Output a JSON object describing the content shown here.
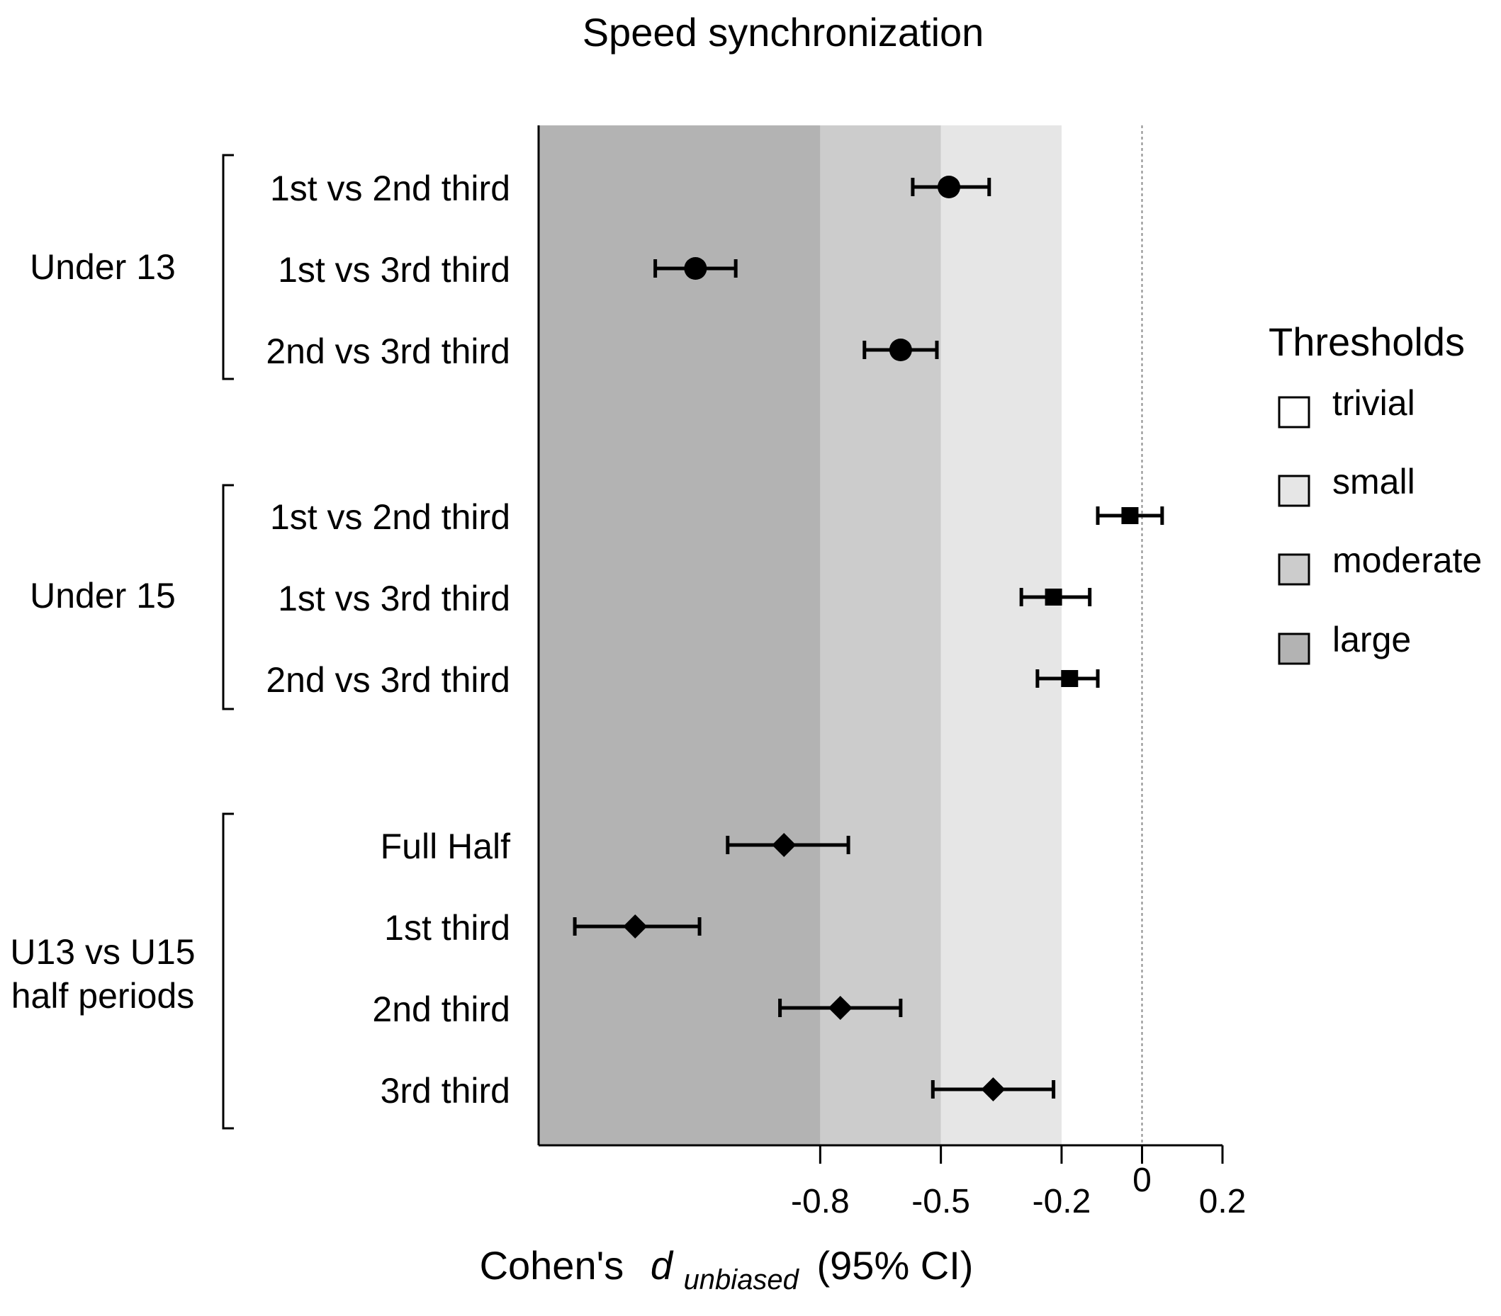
{
  "chart_data": {
    "type": "forest",
    "title": "Speed synchronization",
    "xlabel_prefix": "Cohen's",
    "xlabel_var": "d",
    "xlabel_sub": "unbiased",
    "xlabel_suffix": "(95% CI)",
    "xlim": [
      -1.5,
      0.2
    ],
    "xticks": [
      -0.8,
      -0.5,
      -0.2,
      0,
      0.2
    ],
    "xtick_labels": [
      "-0.8",
      "-0.5",
      "-0.2",
      "0",
      "0.2"
    ],
    "reference_line": 0,
    "thresholds": [
      {
        "name": "trivial",
        "from": -0.2,
        "to": 0.2,
        "color": "#ffffff"
      },
      {
        "name": "small",
        "from": -0.5,
        "to": -0.2,
        "color": "#e6e6e6"
      },
      {
        "name": "moderate",
        "from": -0.8,
        "to": -0.5,
        "color": "#cccccc"
      },
      {
        "name": "large",
        "from": -1.5,
        "to": -0.8,
        "color": "#b3b3b3"
      }
    ],
    "groups": [
      {
        "name": "Under 13",
        "label_lines": [
          "Under 13"
        ],
        "marker": "circle",
        "rows": [
          {
            "label": "1st vs 2nd third",
            "estimate": -0.48,
            "lower": -0.57,
            "upper": -0.38
          },
          {
            "label": "1st vs 3rd third",
            "estimate": -1.11,
            "lower": -1.21,
            "upper": -1.01
          },
          {
            "label": "2nd vs 3rd third",
            "estimate": -0.6,
            "lower": -0.69,
            "upper": -0.51
          }
        ]
      },
      {
        "name": "Under 15",
        "label_lines": [
          "Under 15"
        ],
        "marker": "square",
        "rows": [
          {
            "label": "1st vs 2nd third",
            "estimate": -0.03,
            "lower": -0.11,
            "upper": 0.05
          },
          {
            "label": "1st vs 3rd third",
            "estimate": -0.22,
            "lower": -0.3,
            "upper": -0.13
          },
          {
            "label": "2nd vs 3rd third",
            "estimate": -0.18,
            "lower": -0.26,
            "upper": -0.11
          }
        ]
      },
      {
        "name": "U13 vs U15 half periods",
        "label_lines": [
          "U13 vs U15",
          "half periods"
        ],
        "marker": "diamond",
        "rows": [
          {
            "label": "Full Half",
            "estimate": -0.89,
            "lower": -1.03,
            "upper": -0.73
          },
          {
            "label": "1st third",
            "estimate": -1.26,
            "lower": -1.41,
            "upper": -1.1
          },
          {
            "label": "2nd third",
            "estimate": -0.75,
            "lower": -0.9,
            "upper": -0.6
          },
          {
            "label": "3rd third",
            "estimate": -0.37,
            "lower": -0.52,
            "upper": -0.22
          }
        ]
      }
    ],
    "legend": {
      "title": "Thresholds",
      "position": "right"
    }
  }
}
